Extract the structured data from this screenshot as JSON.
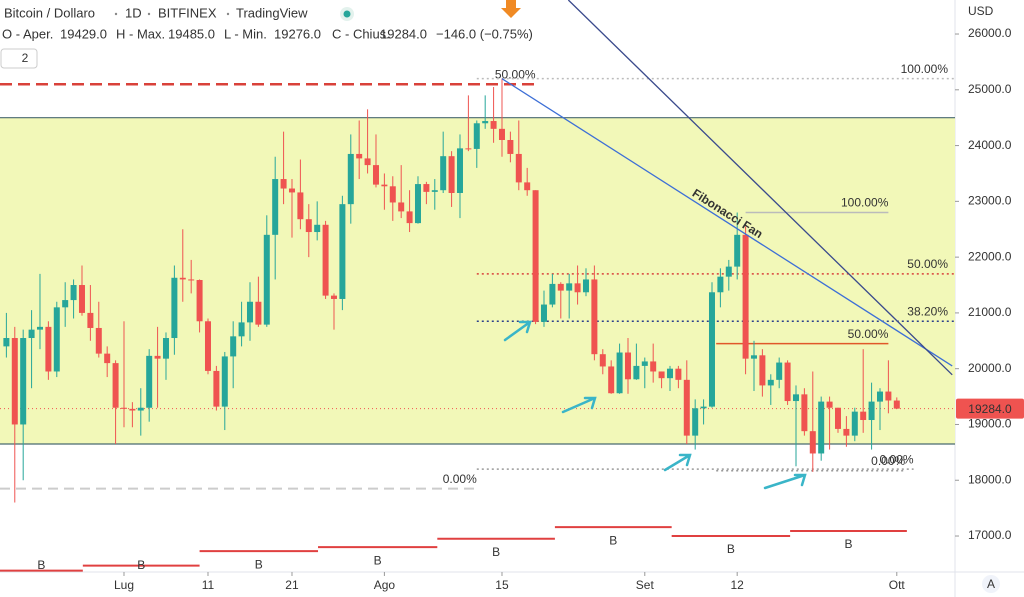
{
  "header": {
    "symbol": "Bitcoin / Dollaro",
    "interval": "1D",
    "exchange": "BITFINEX",
    "source": "TradingView",
    "open_label": "O - Aper.",
    "open": "19429.0",
    "high_label": "H - Max.",
    "high": "19485.0",
    "low_label": "L - Min.",
    "low": "19276.0",
    "close_label": "C - Chius.",
    "close": "19284.0",
    "change": "−146.0 (−0.75%)",
    "badge": "2",
    "currency": "USD",
    "auto": "A"
  },
  "chart_data": {
    "type": "candlestick",
    "x": [
      -14,
      -13,
      -12,
      -11,
      -10,
      -9,
      -8,
      -7,
      -6,
      -5,
      -4,
      -3,
      -2,
      -1,
      0,
      1,
      2,
      3,
      4,
      5,
      6,
      7,
      8,
      9,
      10,
      11,
      12,
      13,
      14,
      15,
      16,
      17,
      18,
      19,
      20,
      21,
      22,
      23,
      24,
      25,
      26,
      27,
      28,
      29,
      30,
      31,
      32,
      33,
      34,
      35,
      36,
      37,
      38,
      39,
      40,
      41,
      42,
      43,
      44,
      45,
      46,
      47,
      48,
      49,
      50,
      51,
      52,
      53,
      54,
      55,
      56,
      57,
      58,
      59,
      60,
      61,
      62,
      63,
      64,
      65,
      66,
      67,
      68,
      69,
      70,
      71,
      72,
      73,
      74,
      75,
      76,
      77,
      78,
      79,
      80,
      81,
      82,
      83,
      84,
      85,
      86,
      87,
      88,
      89,
      90,
      91,
      92
    ],
    "open": [
      20400,
      20550,
      19000,
      20550,
      20700,
      20750,
      19950,
      21100,
      21230,
      21500,
      21000,
      20730,
      20270,
      20100,
      19300,
      19280,
      19250,
      19300,
      20230,
      20180,
      20550,
      21630,
      21600,
      21590,
      20850,
      19960,
      19320,
      20220,
      20580,
      20830,
      21200,
      20790,
      22400,
      23400,
      23230,
      23160,
      22680,
      22450,
      22580,
      21310,
      21250,
      22950,
      23850,
      23770,
      23650,
      23300,
      23270,
      22980,
      22820,
      22610,
      23310,
      23170,
      23200,
      23810,
      23150,
      23950,
      23940,
      24400,
      24440,
      24300,
      24100,
      23850,
      23340,
      23200,
      20840,
      21150,
      21520,
      21400,
      21530,
      21370,
      21600,
      20260,
      20040,
      19560,
      20290,
      19810,
      20050,
      20130,
      19950,
      19830,
      20000,
      19800,
      18800,
      19290,
      19320,
      21370,
      21650,
      21830,
      22400,
      20180,
      20240,
      19700,
      19800,
      20110,
      19420,
      19540,
      18880,
      18480,
      19410,
      19300,
      18920,
      18800,
      19230,
      19080,
      19410,
      19590,
      19429
    ],
    "high": [
      21000,
      20750,
      20700,
      21050,
      21700,
      20850,
      21200,
      21550,
      21600,
      21850,
      21500,
      21200,
      20400,
      20150,
      20850,
      19400,
      19650,
      20350,
      20750,
      20650,
      21850,
      22500,
      21950,
      21600,
      20900,
      20050,
      20300,
      20850,
      21200,
      21550,
      21650,
      22750,
      23800,
      24250,
      23400,
      23750,
      22950,
      23000,
      22650,
      21350,
      23100,
      24200,
      24450,
      24650,
      24200,
      23500,
      23450,
      23650,
      23200,
      23450,
      23350,
      23400,
      24250,
      23900,
      24200,
      24900,
      24450,
      24900,
      25050,
      25200,
      24250,
      24450,
      23600,
      23200,
      21400,
      21700,
      21550,
      21700,
      21850,
      21800,
      21850,
      20350,
      20150,
      20450,
      20550,
      20450,
      20200,
      20450,
      19950,
      20050,
      20050,
      20150,
      19450,
      19450,
      21550,
      21800,
      21950,
      22800,
      22550,
      20500,
      20350,
      19900,
      20200,
      20150,
      19700,
      19650,
      19950,
      19500,
      19500,
      19300,
      19150,
      19300,
      20350,
      19750,
      19650,
      20150,
      19485
    ],
    "low": [
      20200,
      17600,
      18000,
      19650,
      20350,
      19800,
      19850,
      20750,
      20900,
      20950,
      20500,
      20200,
      19850,
      18650,
      18950,
      18950,
      18800,
      19050,
      19300,
      19800,
      20250,
      21200,
      21350,
      20650,
      19900,
      19250,
      18900,
      19650,
      20400,
      20500,
      20750,
      20750,
      21600,
      22950,
      22350,
      22500,
      22000,
      22300,
      21250,
      20700,
      21050,
      22600,
      23400,
      23500,
      23250,
      22850,
      22650,
      22700,
      22450,
      22600,
      22950,
      22850,
      23150,
      22900,
      22700,
      23900,
      23600,
      24300,
      24050,
      23800,
      23700,
      23200,
      23100,
      20800,
      20750,
      21100,
      20900,
      20900,
      21150,
      21300,
      20150,
      19900,
      19550,
      19550,
      19550,
      19800,
      19650,
      19750,
      19650,
      19600,
      19650,
      18650,
      18550,
      19000,
      19300,
      21100,
      21400,
      21600,
      19900,
      19600,
      19500,
      19350,
      19650,
      19350,
      18250,
      18800,
      18150,
      18350,
      18550,
      18850,
      18600,
      18700,
      18850,
      18550,
      18900,
      19200,
      19276
    ],
    "close": [
      20550,
      19000,
      20550,
      20700,
      20750,
      19950,
      21100,
      21230,
      21500,
      21000,
      20730,
      20270,
      20100,
      19300,
      19280,
      19250,
      19300,
      20230,
      20180,
      20550,
      21630,
      21600,
      21590,
      20850,
      19960,
      19320,
      20220,
      20580,
      20830,
      21200,
      20790,
      22400,
      23400,
      23230,
      23160,
      22680,
      22450,
      22580,
      21310,
      21250,
      22950,
      23850,
      23770,
      23650,
      23300,
      23270,
      22980,
      22820,
      22610,
      23310,
      23170,
      23200,
      23810,
      23150,
      23950,
      23940,
      24400,
      24440,
      24300,
      24100,
      23850,
      23340,
      23200,
      20840,
      21150,
      21520,
      21400,
      21530,
      21370,
      21600,
      20260,
      20040,
      19560,
      20290,
      19810,
      20050,
      20130,
      19950,
      19830,
      20000,
      19800,
      18800,
      19290,
      19320,
      21370,
      21650,
      21830,
      22400,
      20180,
      20240,
      19700,
      19800,
      20110,
      19420,
      19540,
      18880,
      18480,
      19410,
      19300,
      18920,
      18800,
      19230,
      19080,
      19410,
      19590,
      19430,
      19284
    ],
    "up_color": "#26a69a",
    "down_color": "#ef5350",
    "xlim": [
      -14.76,
      98.93
    ],
    "xticks": [
      {
        "value": 0,
        "label": "Lug"
      },
      {
        "value": 10,
        "label": "11"
      },
      {
        "value": 20,
        "label": "21"
      },
      {
        "value": 31,
        "label": "Ago"
      },
      {
        "value": 45,
        "label": "15"
      },
      {
        "value": 62,
        "label": "Set"
      },
      {
        "value": 73,
        "label": "12"
      },
      {
        "value": 92,
        "label": "Ott"
      }
    ],
    "ylim": [
      16355,
      26610
    ],
    "yticks": [
      {
        "value": 17000,
        "label": "17000.0"
      },
      {
        "value": 18000,
        "label": "18000.0"
      },
      {
        "value": 19000,
        "label": "19000.0"
      },
      {
        "value": 20000,
        "label": "20000.0"
      },
      {
        "value": 21000,
        "label": "21000.0"
      },
      {
        "value": 22000,
        "label": "22000.0"
      },
      {
        "value": 23000,
        "label": "23000.0"
      },
      {
        "value": 24000,
        "label": "24000.0"
      },
      {
        "value": 25000,
        "label": "25000.0"
      },
      {
        "value": 26000,
        "label": "26000.0"
      }
    ],
    "last_price": {
      "value": 19284,
      "label": "19284.0"
    },
    "zone": {
      "from": 18650,
      "to": 24500,
      "color": "#f2f8b8",
      "edge": "#4a6a70"
    },
    "levels": [
      {
        "value": 25100,
        "from": -15,
        "to": 49,
        "color": "#d9413a",
        "dash": "12 6",
        "width": 2.5,
        "label": "50.00%"
      },
      {
        "value": 25200,
        "from": 42,
        "to": 99,
        "color": "#bbbbbb",
        "dash": "2 3",
        "width": 1.5,
        "label": "100.00%"
      },
      {
        "value": 21700,
        "from": 42,
        "to": 99,
        "color": "#d9413a",
        "dash": "2 3",
        "width": 1.5,
        "label": "50.00%"
      },
      {
        "value": 20850,
        "from": 42,
        "to": 99,
        "color": "#2b3f8c",
        "dash": "2 3",
        "width": 1.5,
        "label": "38.20%"
      },
      {
        "value": 18200,
        "from": 42,
        "to": 94,
        "color": "#999999",
        "dash": "2 3",
        "width": 1.5,
        "label": "0.00%"
      },
      {
        "value": 22800,
        "from": 74,
        "to": 91,
        "color": "#bbbbbb",
        "dash": "0",
        "width": 1.5,
        "label": "100.00%"
      },
      {
        "value": 20450,
        "from": 70.5,
        "to": 91,
        "color": "#e0582a",
        "dash": "0",
        "width": 1.5,
        "label": "50.00%"
      },
      {
        "value": 18170,
        "from": 70.5,
        "to": 93,
        "color": "#999999",
        "dash": "2 3",
        "width": 1.5,
        "label": "0.00%"
      },
      {
        "value": 17850,
        "from": -15,
        "to": 42,
        "color": "#cccccc",
        "dash": "10 6",
        "width": 2,
        "label": "0.00%"
      }
    ],
    "fan": [
      {
        "x": [
          45,
          98.6
        ],
        "y": [
          25200,
          20050
        ],
        "color": "#3d6fd6",
        "label": "Fibonacci Fan"
      },
      {
        "x": [
          52.9,
          98.6
        ],
        "y": [
          26610,
          19890
        ],
        "color": "#3a4a8c"
      }
    ],
    "steps": [
      {
        "from": -15,
        "to": -4.9,
        "value": 16380,
        "label": "B"
      },
      {
        "from": -4.9,
        "to": 9,
        "value": 16470,
        "label": "B"
      },
      {
        "from": 9,
        "to": 23.1,
        "value": 16730,
        "label": "B"
      },
      {
        "from": 23.1,
        "to": 37.3,
        "value": 16800,
        "label": "B"
      },
      {
        "from": 37.3,
        "to": 51.3,
        "value": 16950,
        "label": "B"
      },
      {
        "from": 51.3,
        "to": 65.2,
        "value": 17160,
        "label": "B"
      },
      {
        "from": 65.2,
        "to": 79.3,
        "value": 17000,
        "label": "B"
      },
      {
        "from": 79.3,
        "to": 93.2,
        "value": 17090,
        "label": "B"
      }
    ],
    "step_color": "#e04040"
  }
}
